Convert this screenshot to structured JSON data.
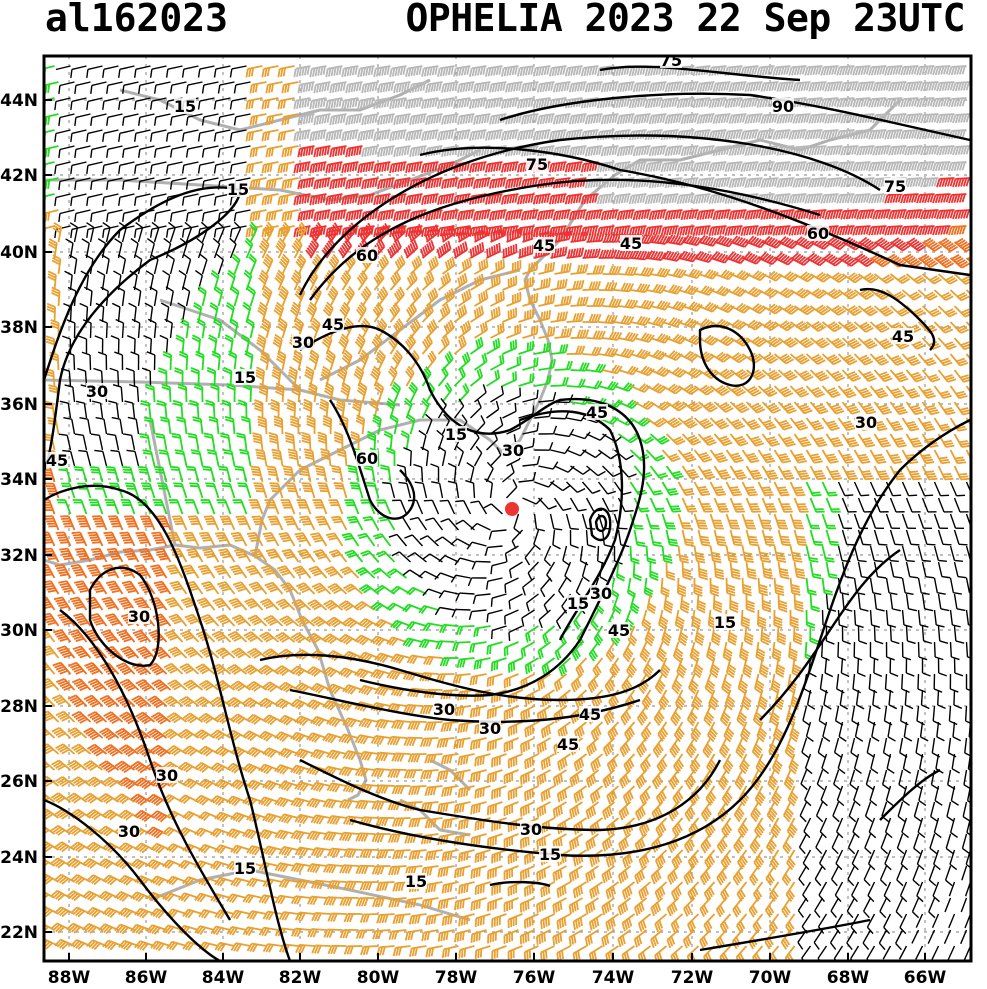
{
  "header": {
    "storm_id": "al162023",
    "storm_title": "OPHELIA 2023 22 Sep 23UTC"
  },
  "axes": {
    "lat_labels": [
      "44N",
      "42N",
      "40N",
      "38N",
      "36N",
      "34N",
      "32N",
      "30N",
      "28N",
      "26N",
      "24N",
      "22N"
    ],
    "lon_labels": [
      "88W",
      "86W",
      "84W",
      "82W",
      "80W",
      "78W",
      "76W",
      "74W",
      "72W",
      "70W",
      "68W",
      "66W"
    ]
  },
  "contour_labels": [
    "75",
    "90",
    "75",
    "75",
    "60",
    "60",
    "45",
    "45",
    "45",
    "45",
    "30",
    "15",
    "15",
    "15",
    "30",
    "30",
    "45",
    "15",
    "30",
    "60",
    "45",
    "30",
    "45",
    "30",
    "15",
    "15",
    "30",
    "45",
    "45",
    "30",
    "30",
    "30",
    "30",
    "15",
    "15",
    "15"
  ],
  "colors": {
    "speed_lt15": "#000000",
    "speed_15_30": "#22dd22",
    "speed_30_45": "#e8a030",
    "speed_45_60": "#f07020",
    "speed_60_75": "#ee3333",
    "speed_gt75": "#b8b8b8",
    "coast": "#b0b0b0",
    "grid": "#999999",
    "center_marker": "#ee3333"
  }
}
